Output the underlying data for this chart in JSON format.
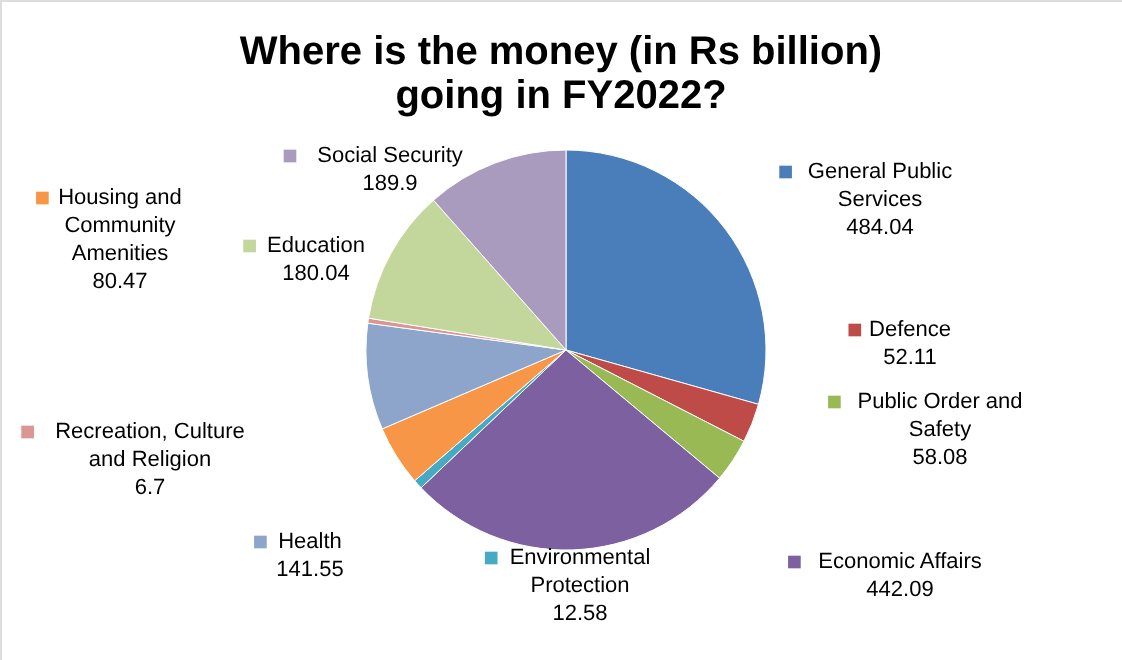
{
  "chart_data": {
    "type": "pie",
    "title": "Where is the money (in Rs billion) going in FY2022?",
    "categories": [
      "General Public Services",
      "Defence",
      "Public Order and Safety",
      "Economic Affairs",
      "Environmental Protection",
      "Housing and Community Amenities",
      "Health",
      "Recreation, Culture and Religion",
      "Education",
      "Social Security"
    ],
    "values": [
      484.04,
      52.11,
      58.08,
      442.09,
      12.58,
      80.47,
      141.55,
      6.7,
      180.04,
      189.9
    ],
    "colors": [
      "#4a7ebb",
      "#be4b48",
      "#98b954",
      "#7d60a0",
      "#46aac5",
      "#f79646",
      "#8ea5cb",
      "#d99694",
      "#c3d69b",
      "#a99bbd"
    ],
    "data_labels": true,
    "legend": "left"
  }
}
